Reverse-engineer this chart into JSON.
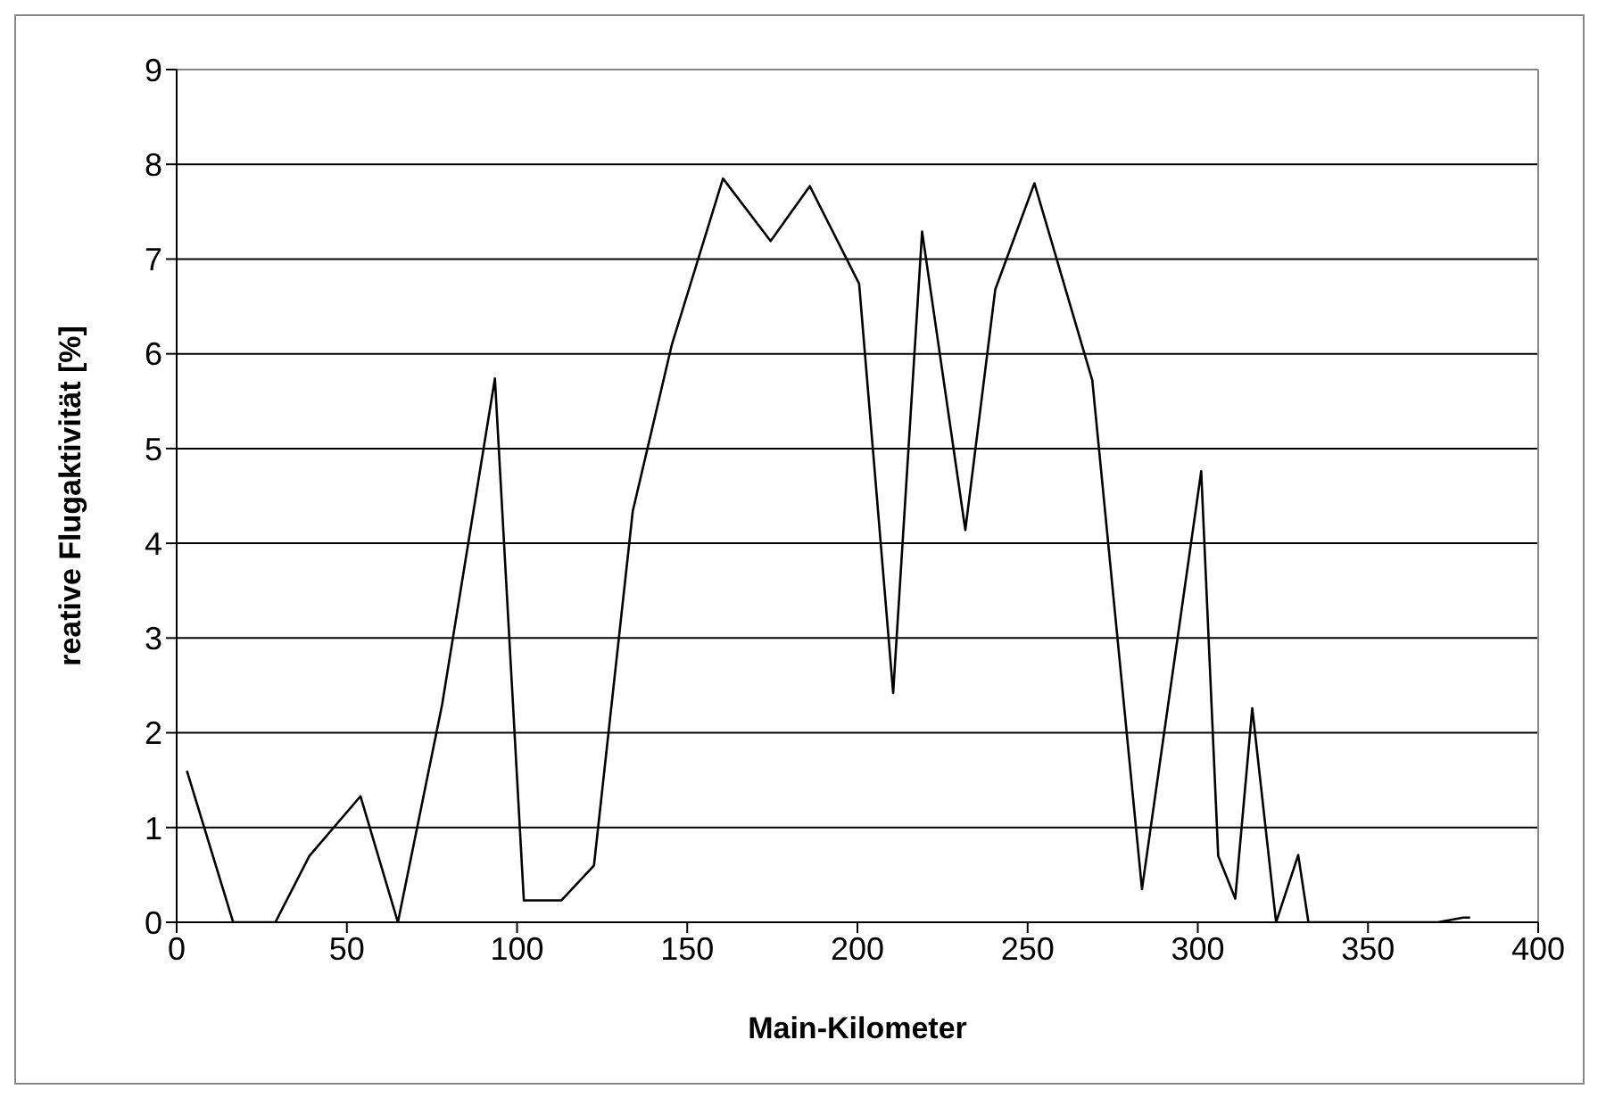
{
  "chart_data": {
    "type": "line",
    "xlabel": "Main-Kilometer",
    "ylabel": "reative Flugaktivität [%]",
    "x": [
      3,
      16.6,
      29,
      39,
      54,
      65,
      78,
      93.5,
      102,
      113,
      122.6,
      134,
      145.5,
      160.5,
      174.5,
      186,
      200.5,
      210.5,
      219,
      231.7,
      240.5,
      252,
      269,
      283.6,
      301,
      306,
      311,
      316,
      323,
      329.5,
      332.5,
      370.5,
      378,
      380
    ],
    "series": [
      {
        "color": "#000000",
        "values": [
          1.6,
          0,
          0,
          0.7,
          1.33,
          0,
          2.3,
          5.74,
          0.23,
          0.23,
          0.6,
          4.34,
          6.1,
          7.85,
          7.19,
          7.77,
          6.74,
          2.42,
          7.29,
          4.14,
          6.68,
          7.8,
          5.72,
          0.35,
          4.76,
          0.7,
          0.25,
          2.26,
          0,
          0.71,
          0,
          0,
          0.05,
          0.05
        ]
      }
    ],
    "xlim": [
      0,
      400
    ],
    "xticks": [
      0,
      50,
      100,
      150,
      200,
      250,
      300,
      350,
      400
    ],
    "ylim": [
      0,
      9
    ],
    "yticks": [
      0,
      1,
      2,
      3,
      4,
      5,
      6,
      7,
      8,
      9
    ],
    "grid": "y",
    "marker": "none",
    "line_style": "solid",
    "legend": false
  }
}
